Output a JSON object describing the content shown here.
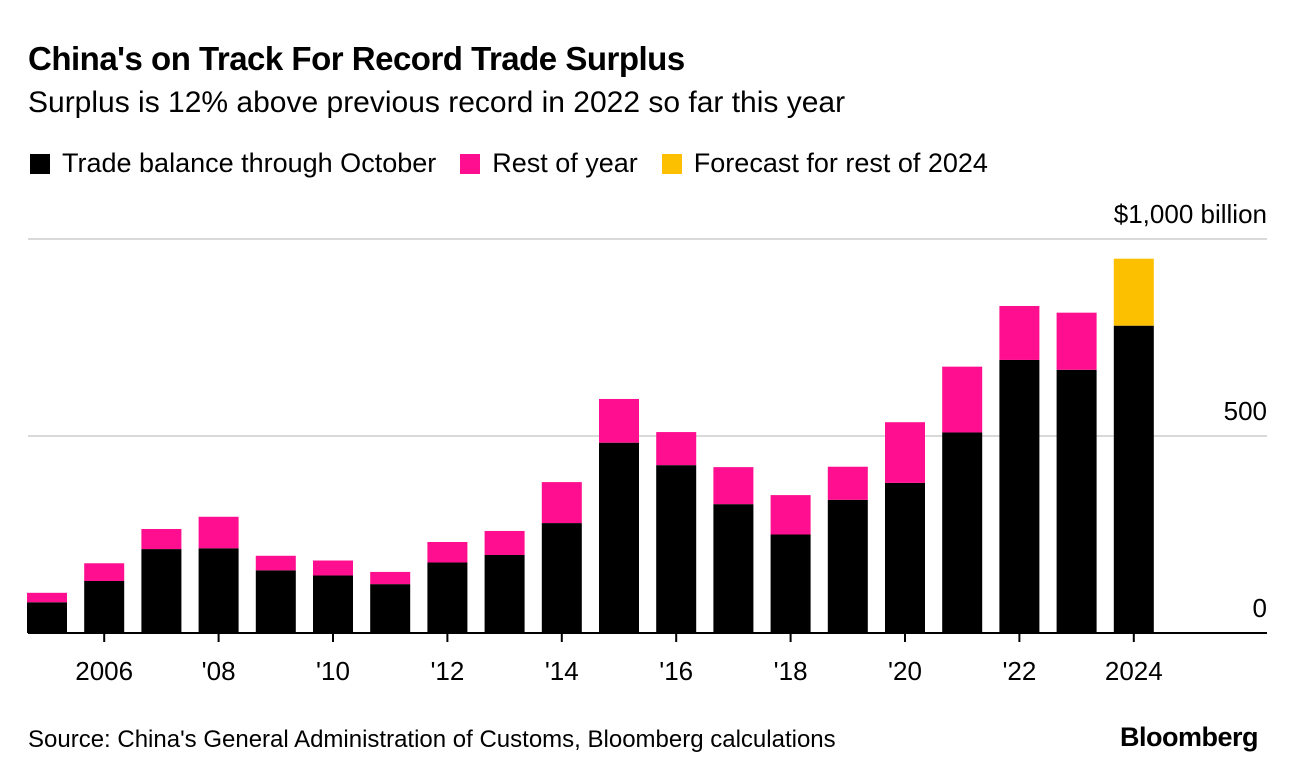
{
  "chart_data": {
    "type": "bar",
    "stacked": true,
    "title": "China's on Track For Record Trade Surplus",
    "subtitle": "Surplus is 12% above previous record in 2022 so far this year",
    "categories": [
      "2005",
      "2006",
      "2007",
      "2008",
      "2009",
      "2010",
      "2011",
      "2012",
      "2013",
      "2014",
      "2015",
      "2016",
      "2017",
      "2018",
      "2019",
      "2020",
      "2021",
      "2022",
      "2023",
      "2024"
    ],
    "series": [
      {
        "name": "Trade balance through October",
        "color": "#000000",
        "values": [
          78,
          132,
          213,
          215,
          159,
          146,
          124,
          179,
          198,
          279,
          483,
          426,
          327,
          250,
          338,
          381,
          509,
          693,
          668,
          780
        ]
      },
      {
        "name": "Rest of year",
        "color": "#ff0f8f",
        "values": [
          24,
          45,
          51,
          80,
          37,
          38,
          31,
          52,
          61,
          104,
          111,
          84,
          94,
          100,
          84,
          154,
          167,
          137,
          145,
          0
        ]
      },
      {
        "name": "Forecast for rest of 2024",
        "color": "#fcc000",
        "values": [
          0,
          0,
          0,
          0,
          0,
          0,
          0,
          0,
          0,
          0,
          0,
          0,
          0,
          0,
          0,
          0,
          0,
          0,
          0,
          170
        ]
      }
    ],
    "ylim": [
      0,
      1000
    ],
    "yticks": [
      0,
      500,
      1000
    ],
    "ytick_labels": [
      "0",
      "500",
      "$1,000 billion"
    ],
    "xtick_labels": [
      {
        "year": "2006",
        "label": "2006"
      },
      {
        "year": "2008",
        "label": "'08"
      },
      {
        "year": "2010",
        "label": "'10"
      },
      {
        "year": "2012",
        "label": "'12"
      },
      {
        "year": "2014",
        "label": "'14"
      },
      {
        "year": "2016",
        "label": "'16"
      },
      {
        "year": "2018",
        "label": "'18"
      },
      {
        "year": "2020",
        "label": "'20"
      },
      {
        "year": "2022",
        "label": "'22"
      },
      {
        "year": "2024",
        "label": "2024"
      }
    ],
    "xlabel": "",
    "ylabel": ""
  },
  "legend": {
    "items": [
      {
        "label": "Trade balance through October",
        "color": "#000000"
      },
      {
        "label": "Rest of year",
        "color": "#ff0f8f"
      },
      {
        "label": "Forecast for rest of 2024",
        "color": "#fcc000"
      }
    ]
  },
  "footer": {
    "source": "Source: China's General Administration of Customs, Bloomberg calculations",
    "brand": "Bloomberg"
  }
}
